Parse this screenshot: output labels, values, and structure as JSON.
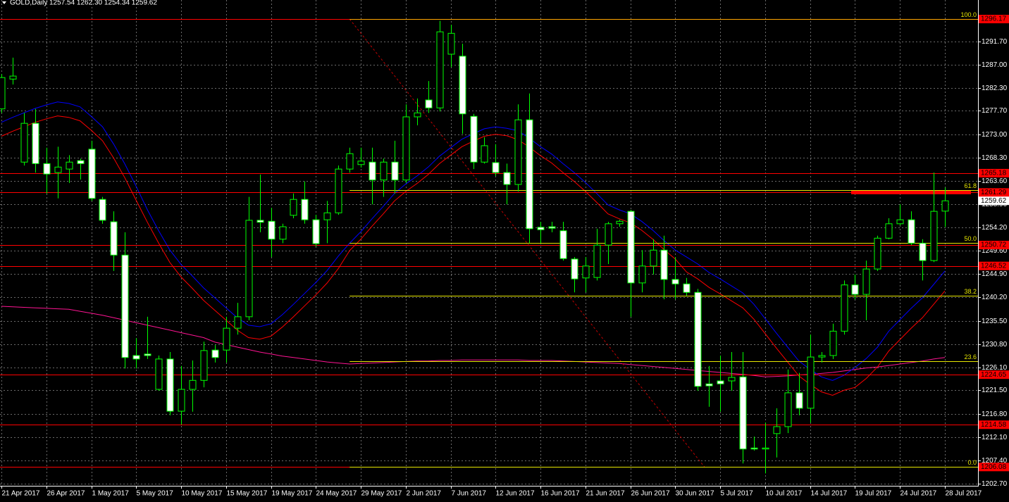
{
  "header": {
    "symbol": "GOLD,Daily",
    "ohlc_text": "1257.54 1262.30 1254.34 1259.62"
  },
  "chart_data": {
    "type": "candlestick",
    "categories": [
      "21 Apr 2017",
      null,
      null,
      null,
      "26 Apr 2017",
      null,
      null,
      null,
      "1 May 2017",
      null,
      null,
      null,
      "5 May 2017",
      null,
      null,
      null,
      "10 May 2017",
      null,
      null,
      null,
      "15 May 2017",
      null,
      null,
      null,
      "19 May 2017",
      null,
      null,
      null,
      "24 May 2017",
      null,
      null,
      null,
      "29 May 2017",
      null,
      null,
      null,
      "2 Jun 2017",
      null,
      null,
      null,
      "7 Jun 2017",
      null,
      null,
      null,
      "12 Jun 2017",
      null,
      null,
      null,
      "16 Jun 2017",
      null,
      null,
      null,
      "21 Jun 2017",
      null,
      null,
      null,
      "26 Jun 2017",
      null,
      null,
      null,
      "30 Jun 2017",
      null,
      null,
      null,
      "5 Jul 2017",
      null,
      null,
      null,
      "10 Jul 2017",
      null,
      null,
      null,
      "14 Jul 2017",
      null,
      null,
      null,
      "19 Jul 2017",
      null,
      null,
      null,
      "24 Jul 2017",
      null,
      null,
      null,
      "28 Jul 2017"
    ],
    "open": [
      1278.1,
      1284.1,
      1267.4,
      1275.2,
      1267.1,
      1265.3,
      1266.0,
      1267.7,
      1270.0,
      1259.9,
      1255.4,
      1248.7,
      1228.5,
      1228.8,
      1221.7,
      1227.8,
      1217.3,
      1221.7,
      1223.5,
      1229.6,
      1229.6,
      1234.0,
      1236.3,
      1255.7,
      1255.5,
      1251.9,
      1256.7,
      1259.9,
      1255.8,
      1255.8,
      1257.2,
      1266.0,
      1266.9,
      1267.4,
      1263.8,
      1267.4,
      1263.8,
      1276.5,
      1279.9,
      1278.3,
      1289.1,
      1288.7,
      1276.6,
      1267.4,
      1267.3,
      1265.3,
      1262.9,
      1275.9,
      1254.3,
      1254.4,
      1253.6,
      1247.9,
      1244.1,
      1244.2,
      1250.7,
      1255.0,
      1257.5,
      1243.1,
      1246.5,
      1249.7,
      1243.8,
      1242.9,
      1241.2,
      1222.8,
      1223.4,
      1223.4,
      1224.2,
      1209.9,
      1209.7,
      1212.8,
      1214.2,
      1221.0,
      1217.9,
      1228.2,
      1228.5,
      1233.4,
      1242.7,
      1240.8,
      1245.9,
      1252.1,
      1255.0,
      1255.8,
      1251.1,
      1247.6,
      1257.54
    ],
    "high": [
      1285.1,
      1288.4,
      1277.3,
      1278.1,
      1270.3,
      1270.5,
      1268.8,
      1268.1,
      1271.7,
      1260.4,
      1257.5,
      1253.3,
      1232.0,
      1236.3,
      1228.5,
      1229.2,
      1226.4,
      1227.5,
      1231.3,
      1230.6,
      1236.3,
      1239.1,
      1260.4,
      1264.9,
      1258.2,
      1255.0,
      1261.1,
      1263.5,
      1256.8,
      1259.6,
      1266.7,
      1270.3,
      1270.3,
      1270.3,
      1268.1,
      1271.7,
      1279.0,
      1280.2,
      1283.7,
      1295.8,
      1295.0,
      1291.2,
      1277.1,
      1272.4,
      1271.0,
      1267.1,
      1279.0,
      1281.2,
      1255.4,
      1255.4,
      1255.4,
      1248.3,
      1248.3,
      1254.0,
      1255.4,
      1255.8,
      1257.8,
      1249.7,
      1251.9,
      1252.6,
      1248.3,
      1244.1,
      1241.9,
      1226.4,
      1228.5,
      1229.2,
      1229.2,
      1212.2,
      1215.0,
      1217.9,
      1225.7,
      1225.0,
      1232.7,
      1229.2,
      1234.9,
      1243.6,
      1244.8,
      1247.6,
      1252.6,
      1256.1,
      1258.9,
      1257.5,
      1251.9,
      1265.3,
      1262.3
    ],
    "low": [
      1277.3,
      1283.0,
      1266.7,
      1265.3,
      1261.1,
      1260.1,
      1263.2,
      1263.9,
      1259.6,
      1255.0,
      1245.5,
      1225.9,
      1225.9,
      1227.8,
      1221.4,
      1216.5,
      1214.6,
      1217.2,
      1222.1,
      1227.1,
      1227.1,
      1232.7,
      1235.6,
      1253.3,
      1248.3,
      1251.1,
      1256.1,
      1255.0,
      1250.4,
      1251.1,
      1256.8,
      1265.3,
      1266.3,
      1258.9,
      1260.4,
      1261.1,
      1263.2,
      1274.8,
      1277.3,
      1277.6,
      1286.5,
      1273.1,
      1266.0,
      1267.1,
      1264.6,
      1258.9,
      1261.5,
      1251.1,
      1251.1,
      1253.3,
      1247.6,
      1241.2,
      1241.2,
      1243.6,
      1246.9,
      1254.4,
      1236.3,
      1241.2,
      1244.8,
      1239.8,
      1239.8,
      1240.5,
      1221.4,
      1218.2,
      1217.2,
      1221.4,
      1206.8,
      1209.4,
      1204.8,
      1208.0,
      1212.9,
      1216.5,
      1215.0,
      1227.1,
      1227.8,
      1232.7,
      1239.8,
      1235.6,
      1245.5,
      1251.9,
      1254.7,
      1250.7,
      1243.6,
      1247.3,
      1254.34
    ],
    "close": [
      1284.4,
      1284.7,
      1275.2,
      1267.1,
      1265.0,
      1266.4,
      1267.4,
      1267.1,
      1260.1,
      1255.7,
      1248.7,
      1228.1,
      1227.8,
      1228.5,
      1227.8,
      1217.3,
      1221.7,
      1223.5,
      1229.5,
      1228.1,
      1234.0,
      1236.3,
      1255.7,
      1255.3,
      1251.9,
      1254.4,
      1259.9,
      1255.8,
      1251.0,
      1257.2,
      1266.0,
      1269.1,
      1267.6,
      1263.8,
      1267.4,
      1263.8,
      1276.5,
      1277.3,
      1278.3,
      1293.6,
      1293.3,
      1277.1,
      1267.4,
      1270.7,
      1265.3,
      1262.9,
      1275.9,
      1254.0,
      1253.8,
      1254.1,
      1248.0,
      1243.9,
      1246.5,
      1250.7,
      1255.0,
      1255.5,
      1243.1,
      1246.5,
      1249.7,
      1243.8,
      1242.9,
      1241.2,
      1222.3,
      1222.4,
      1222.8,
      1224.1,
      1209.7,
      1209.7,
      1209.9,
      1214.2,
      1221.0,
      1217.9,
      1228.2,
      1228.5,
      1233.4,
      1242.7,
      1240.8,
      1245.9,
      1252.1,
      1255.0,
      1255.8,
      1251.1,
      1247.6,
      1257.5,
      1259.62
    ],
    "bull_color": "#000000",
    "bear_color": "#ffffff",
    "wick_color": "#00ff00",
    "lines": [
      {
        "color": "#ff1493",
        "values": [
          1238.4,
          1238.3,
          1238.2,
          1238.1,
          1238.0,
          1237.9,
          1237.8,
          1237.4,
          1237.0,
          1236.6,
          1236.1,
          1235.6,
          1235.1,
          1234.6,
          1234.1,
          1233.6,
          1233.1,
          1232.6,
          1232.1,
          1231.2,
          1230.7,
          1230.2,
          1229.7,
          1229.2,
          1228.8,
          1228.4,
          1228.1,
          1227.8,
          1227.5,
          1227.2,
          1227.0,
          1226.8,
          1226.9,
          1227.0,
          1227.1,
          1227.2,
          1227.3,
          1227.4,
          1227.4,
          1227.5,
          1227.5,
          1227.6,
          1227.6,
          1227.6,
          1227.6,
          1227.6,
          1227.6,
          1227.5,
          1227.5,
          1227.5,
          1227.4,
          1227.3,
          1227.2,
          1227.1,
          1227.0,
          1226.9,
          1226.7,
          1226.5,
          1226.3,
          1226.1,
          1225.9,
          1225.7,
          1225.5,
          1225.3,
          1225.1,
          1224.9,
          1224.7,
          1224.5,
          1224.2,
          1224.3,
          1224.4,
          1224.6,
          1224.7,
          1224.9,
          1225.1,
          1225.4,
          1225.7,
          1226.0,
          1226.2,
          1226.5,
          1226.8,
          1227.1,
          1227.4,
          1227.8,
          1228.1
        ]
      },
      {
        "color": "#ff0000",
        "values": [
          1272.6,
          1273.6,
          1274.5,
          1275.4,
          1276.1,
          1276.7,
          1276.4,
          1275.7,
          1273.8,
          1271.7,
          1268.2,
          1264.2,
          1259.7,
          1255.3,
          1251.1,
          1247.2,
          1244.3,
          1242.0,
          1239.6,
          1237.6,
          1235.6,
          1233.6,
          1232.1,
          1231.8,
          1232.4,
          1234.2,
          1236.3,
          1238.5,
          1240.7,
          1243.1,
          1246.0,
          1249.6,
          1251.9,
          1254.5,
          1257.0,
          1259.6,
          1261.5,
          1263.1,
          1264.9,
          1267.1,
          1268.8,
          1270.5,
          1271.6,
          1272.6,
          1273.0,
          1272.7,
          1271.9,
          1270.4,
          1268.7,
          1267.2,
          1265.3,
          1263.5,
          1261.5,
          1259.3,
          1257.0,
          1256.0,
          1255.2,
          1253.7,
          1251.9,
          1249.8,
          1247.9,
          1245.3,
          1243.9,
          1242.2,
          1240.9,
          1239.5,
          1238.1,
          1235.8,
          1232.9,
          1230.0,
          1227.2,
          1224.4,
          1222.7,
          1221.2,
          1220.5,
          1221.5,
          1222.1,
          1223.9,
          1226.2,
          1229.4,
          1231.7,
          1234.0,
          1236.1,
          1238.8,
          1241.5
        ]
      },
      {
        "color": "#0000ff",
        "values": [
          1275.4,
          1276.4,
          1277.3,
          1278.2,
          1278.9,
          1279.5,
          1279.2,
          1278.5,
          1276.6,
          1274.5,
          1271.0,
          1267.0,
          1262.5,
          1257.8,
          1253.6,
          1249.7,
          1246.8,
          1244.5,
          1242.1,
          1240.1,
          1238.1,
          1236.1,
          1234.6,
          1234.3,
          1234.9,
          1236.7,
          1238.8,
          1241.0,
          1243.2,
          1245.6,
          1248.5,
          1251.1,
          1253.4,
          1256.0,
          1258.5,
          1261.1,
          1263.0,
          1264.6,
          1266.4,
          1268.6,
          1270.3,
          1272.0,
          1273.1,
          1274.1,
          1274.5,
          1274.2,
          1273.7,
          1272.2,
          1270.5,
          1269.0,
          1267.1,
          1265.3,
          1263.3,
          1261.1,
          1258.8,
          1257.8,
          1257.0,
          1255.5,
          1253.7,
          1251.6,
          1249.7,
          1248.3,
          1246.9,
          1245.2,
          1243.9,
          1242.5,
          1241.1,
          1238.8,
          1235.9,
          1233.0,
          1230.2,
          1227.4,
          1225.7,
          1224.2,
          1223.5,
          1224.5,
          1226.1,
          1227.9,
          1230.2,
          1233.4,
          1235.7,
          1238.0,
          1240.1,
          1242.8,
          1245.5
        ]
      }
    ],
    "price_levels": [
      1296.17,
      1265.18,
      1261.29,
      1250.72,
      1246.52,
      1224.65,
      1214.58,
      1206.08
    ],
    "level_color": "#ff0000",
    "fib_levels": [
      {
        "value": 1296.17,
        "label": "100.0"
      },
      {
        "value": 1261.76,
        "label": "61.8"
      },
      {
        "value": 1251.13,
        "label": "50.0"
      },
      {
        "value": 1240.49,
        "label": "38.2"
      },
      {
        "value": 1227.34,
        "label": "23.6"
      },
      {
        "value": 1206.08,
        "label": "0.0"
      }
    ],
    "fib_color": "#e6e600",
    "current_price": 1259.62,
    "ylim": [
      1202.3,
      1300.0
    ],
    "yticks": [
      {
        "value": 1291.7,
        "label": "1291.70"
      },
      {
        "value": 1287,
        "label": "1287.00"
      },
      {
        "value": 1282.3,
        "label": "1282.30"
      },
      {
        "value": 1277.7,
        "label": "1277.70"
      },
      {
        "value": 1273,
        "label": "1273.00"
      },
      {
        "value": 1268.3,
        "label": "1268.30"
      },
      {
        "value": 1263.6,
        "label": "1263.60"
      },
      {
        "value": 1258.9,
        "label": "1258.90"
      },
      {
        "value": 1254.2,
        "label": "1254.20"
      },
      {
        "value": 1249.6,
        "label": "1249.60"
      },
      {
        "value": 1244.9,
        "label": "1244.90"
      },
      {
        "value": 1240.2,
        "label": "1240.20"
      },
      {
        "value": 1235.5,
        "label": "1235.50"
      },
      {
        "value": 1230.8,
        "label": "1230.80"
      },
      {
        "value": 1226.1,
        "label": "1226.10"
      },
      {
        "value": 1221.5,
        "label": "1221.50"
      },
      {
        "value": 1216.8,
        "label": "1216.80"
      },
      {
        "value": 1212.1,
        "label": "1212.10"
      },
      {
        "value": 1207.4,
        "label": "1207.40"
      },
      {
        "value": 1202.7,
        "label": "1202.70"
      }
    ],
    "grid": true
  }
}
